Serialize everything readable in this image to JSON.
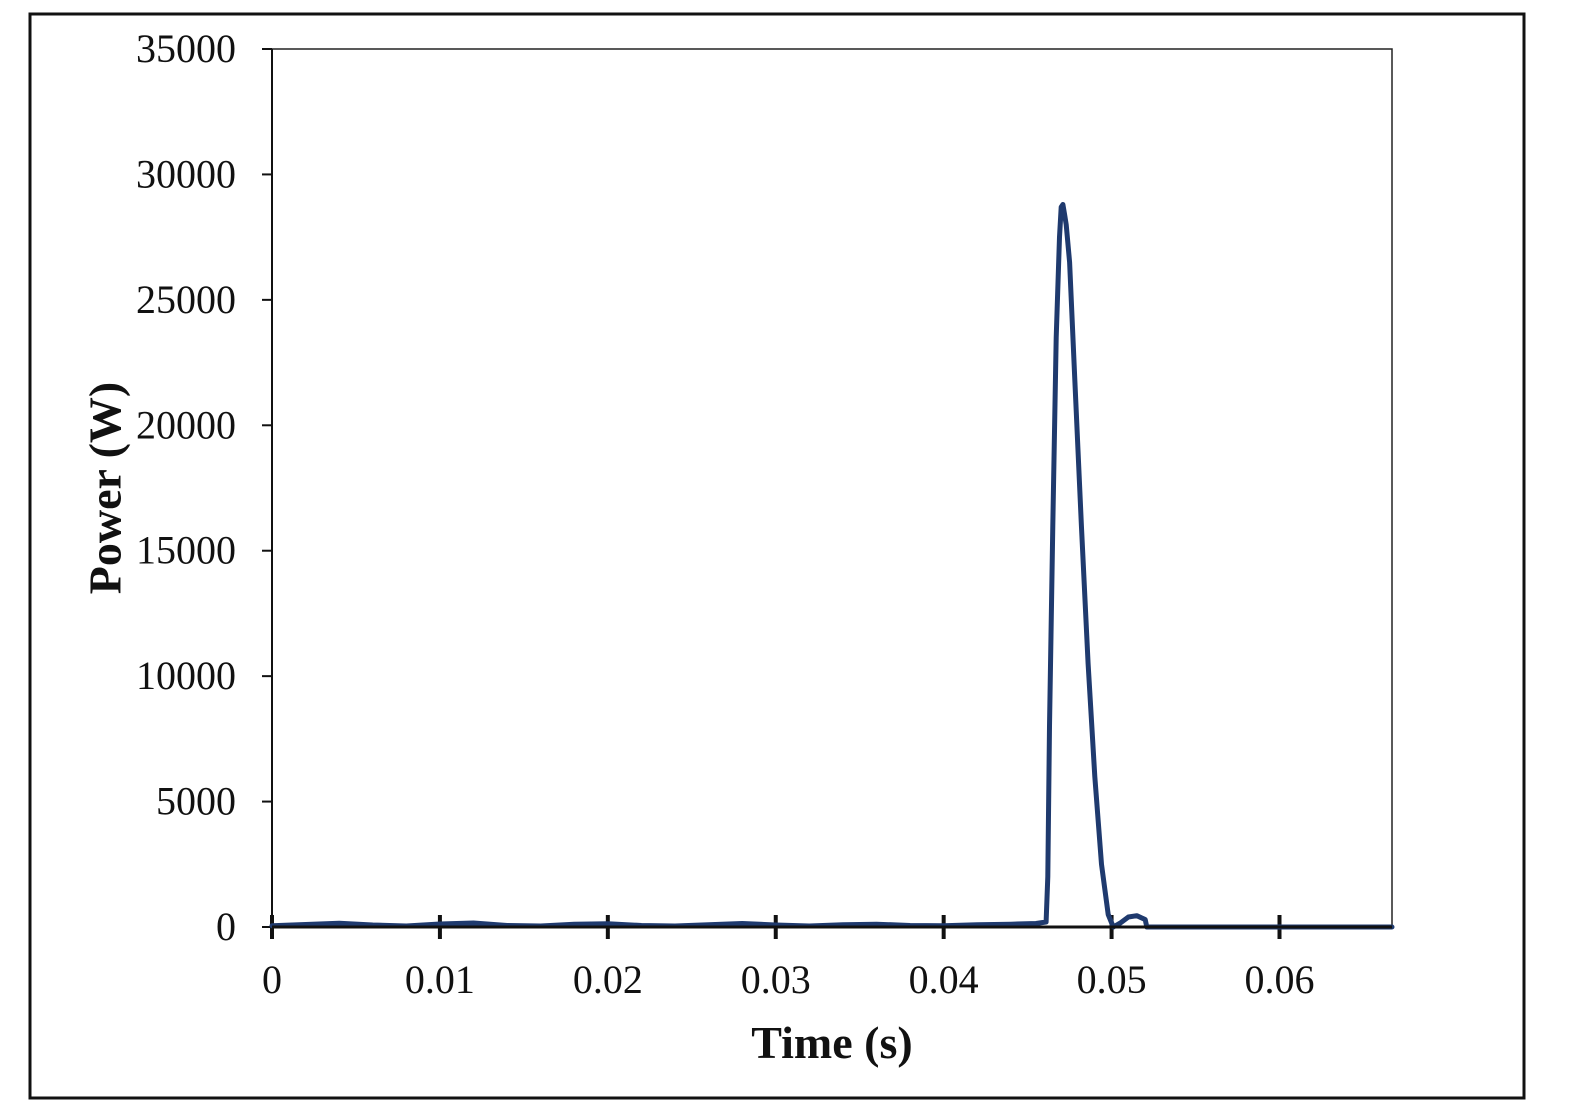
{
  "chart_data": {
    "type": "line",
    "title": "",
    "xlabel": "Time (s)",
    "ylabel": "Power (W)",
    "xlim": [
      0,
      0.0667
    ],
    "ylim": [
      0,
      35000
    ],
    "x_ticks": [
      0,
      0.01,
      0.02,
      0.03,
      0.04,
      0.05,
      0.06
    ],
    "x_tick_labels": [
      "0",
      "0.01",
      "0.02",
      "0.03",
      "0.04",
      "0.05",
      "0.06"
    ],
    "y_ticks": [
      0,
      5000,
      10000,
      15000,
      20000,
      25000,
      30000,
      35000
    ],
    "y_tick_labels": [
      "0",
      "5000",
      "10000",
      "15000",
      "20000",
      "25000",
      "30000",
      "35000"
    ],
    "grid": false,
    "legend": "none",
    "colors": {
      "series": "#1f3a6e",
      "axis": "#111111",
      "frame": "#111111"
    },
    "series": [
      {
        "x": [
          0,
          0.002,
          0.004,
          0.006,
          0.008,
          0.01,
          0.012,
          0.014,
          0.016,
          0.018,
          0.02,
          0.022,
          0.024,
          0.026,
          0.028,
          0.03,
          0.032,
          0.034,
          0.036,
          0.038,
          0.04,
          0.042,
          0.044,
          0.0455,
          0.0461,
          0.0462,
          0.0463,
          0.0465,
          0.0467,
          0.0469,
          0.047,
          0.0471,
          0.0472,
          0.0473,
          0.0475,
          0.0478,
          0.0482,
          0.0486,
          0.049,
          0.0494,
          0.0498,
          0.0501,
          0.0505,
          0.051,
          0.0515,
          0.052,
          0.0521,
          0.053,
          0.056,
          0.06,
          0.064,
          0.0667
        ],
        "values": [
          50,
          100,
          150,
          80,
          40,
          120,
          160,
          60,
          40,
          110,
          130,
          60,
          40,
          90,
          140,
          80,
          40,
          90,
          110,
          60,
          50,
          90,
          110,
          140,
          200,
          2000,
          8000,
          16000,
          23500,
          27500,
          28700,
          28800,
          28400,
          28000,
          26500,
          22000,
          16000,
          10500,
          6000,
          2500,
          500,
          0,
          150,
          400,
          450,
          300,
          0,
          0,
          0,
          0,
          0,
          0
        ]
      }
    ]
  }
}
